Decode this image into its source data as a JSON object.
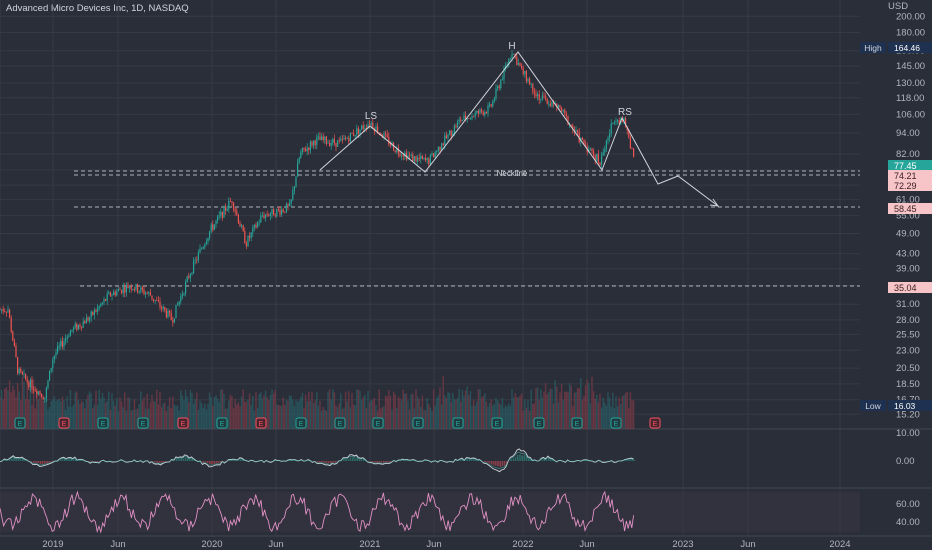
{
  "title": "Advanced Micro Devices Inc, 1D, NASDAQ",
  "currency": "USD",
  "colors": {
    "background": "#2a2e39",
    "grid": "#363a45",
    "up": "#26a69a",
    "down": "#ef5350",
    "pattern_line": "#d1d4dc",
    "rsi_line": "#e091c4",
    "macd_line": "#d1d4dc",
    "earnings_red": "#f7525f",
    "earnings_teal": "#26a69a"
  },
  "price_axis": [
    "200.00",
    "180.00",
    "160.00",
    "145.00",
    "130.00",
    "118.00",
    "106.00",
    "94.00",
    "82.00",
    "74.00",
    "67.00",
    "61.00",
    "55.00",
    "49.00",
    "43.00",
    "39.00",
    "35.00",
    "31.00",
    "28.00",
    "25.50",
    "23.00",
    "20.50",
    "18.50",
    "16.70",
    "15.20"
  ],
  "high_label": {
    "text": "High",
    "value": "164.46"
  },
  "low_label": {
    "text": "Low",
    "value": "16.03"
  },
  "price_badges": [
    {
      "value": "77.45",
      "style": "teal"
    },
    {
      "value": "74.21",
      "style": "pink"
    },
    {
      "value": "72.29",
      "style": "pink"
    },
    {
      "value": "58.45",
      "style": "pink"
    },
    {
      "value": "35.04",
      "style": "pink"
    }
  ],
  "pattern_labels": {
    "left_shoulder": "LS",
    "head": "H",
    "right_shoulder": "RS",
    "neckline": "Neckline"
  },
  "macd_axis": [
    "10.00",
    "0.00"
  ],
  "rsi_axis": [
    "60.00",
    "40.00"
  ],
  "time_axis": [
    "2019",
    "Jun",
    "2020",
    "Jun",
    "2021",
    "Jun",
    "2022",
    "Jun",
    "2023",
    "Jun",
    "2024"
  ],
  "earnings_marker": "E"
}
